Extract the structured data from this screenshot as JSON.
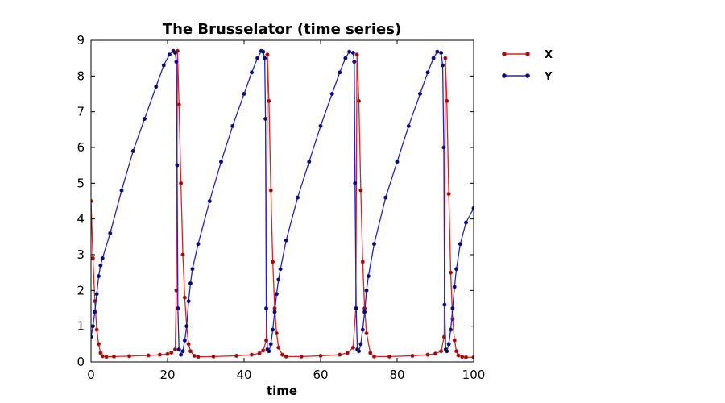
{
  "chart_data": {
    "type": "line",
    "title": "The Brusselator (time series)",
    "xlabel": "time",
    "ylabel": "",
    "xlim": [
      0,
      100
    ],
    "ylim": [
      0,
      9
    ],
    "xticks": [
      "0",
      "20",
      "40",
      "60",
      "80",
      "100"
    ],
    "yticks": [
      "0",
      "1",
      "2",
      "3",
      "4",
      "5",
      "6",
      "7",
      "8",
      "9"
    ],
    "grid": false,
    "legend_position": "outside-top-right",
    "colors": {
      "X": "#dd2222",
      "Y": "#2222cc",
      "X_marker": "#8b1111",
      "Y_marker": "#0a0a55"
    },
    "series": [
      {
        "name": "X",
        "x": [
          0,
          0.5,
          1,
          1.5,
          2,
          2.5,
          3,
          4,
          6,
          10,
          15,
          18,
          20,
          21,
          22,
          22.3,
          22.6,
          23,
          23.5,
          24,
          24.5,
          25,
          25.5,
          26,
          27,
          28,
          32,
          38,
          42,
          44,
          45,
          45.8,
          46.1,
          46.5,
          47,
          47.5,
          48,
          48.5,
          49,
          50,
          51,
          55,
          60,
          65,
          67,
          68.5,
          69.2,
          69.5,
          70,
          70.5,
          71,
          71.5,
          72,
          73,
          74,
          78,
          84,
          88,
          90,
          91.5,
          92.3,
          92.6,
          93,
          93.5,
          94,
          94.5,
          95,
          95.5,
          96,
          97,
          98,
          100
        ],
        "y": [
          4.5,
          2.9,
          1.7,
          0.9,
          0.5,
          0.25,
          0.16,
          0.14,
          0.15,
          0.16,
          0.18,
          0.2,
          0.22,
          0.26,
          0.35,
          2.0,
          8.7,
          7.2,
          5.0,
          3.0,
          1.8,
          1.0,
          0.5,
          0.3,
          0.17,
          0.14,
          0.15,
          0.17,
          0.2,
          0.24,
          0.32,
          0.6,
          8.6,
          7.3,
          4.8,
          2.8,
          1.5,
          0.8,
          0.4,
          0.2,
          0.15,
          0.15,
          0.17,
          0.2,
          0.25,
          0.4,
          1.5,
          8.6,
          7.3,
          4.8,
          2.8,
          1.5,
          0.8,
          0.25,
          0.15,
          0.15,
          0.17,
          0.2,
          0.23,
          0.3,
          0.7,
          8.5,
          7.3,
          4.7,
          2.5,
          1.2,
          0.6,
          0.3,
          0.18,
          0.14,
          0.13,
          0.13
        ]
      },
      {
        "name": "Y",
        "x": [
          0,
          0.5,
          1,
          1.5,
          2,
          2.5,
          3,
          5,
          8,
          11,
          14,
          17,
          19,
          20.5,
          21.5,
          22,
          22.3,
          22.5,
          22.7,
          23,
          23.5,
          24,
          24.5,
          25,
          25.5,
          26,
          26.5,
          28,
          31,
          34,
          37,
          40,
          42,
          43.5,
          44.5,
          45,
          45.4,
          45.6,
          45.8,
          46.1,
          46.5,
          47,
          47.5,
          48,
          48.5,
          49,
          49.5,
          51,
          54,
          57,
          60,
          63,
          65,
          66.5,
          67.5,
          68.5,
          68.8,
          69,
          69.3,
          69.6,
          70,
          70.5,
          71,
          71.5,
          72,
          72.5,
          74,
          77,
          80,
          83,
          86,
          88,
          89.5,
          90.5,
          91.5,
          91.9,
          92.2,
          92.4,
          92.7,
          93,
          93.5,
          94,
          94.5,
          95,
          95.5,
          96.5,
          98,
          100
        ],
        "y": [
          0.7,
          1.0,
          1.4,
          1.9,
          2.4,
          2.7,
          2.9,
          3.6,
          4.8,
          5.9,
          6.8,
          7.7,
          8.3,
          8.6,
          8.7,
          8.65,
          8.4,
          5.5,
          1.5,
          0.35,
          0.2,
          0.3,
          0.6,
          1.0,
          1.7,
          2.2,
          2.6,
          3.3,
          4.5,
          5.6,
          6.6,
          7.5,
          8.1,
          8.5,
          8.7,
          8.68,
          8.5,
          6.8,
          1.5,
          0.35,
          0.3,
          0.5,
          0.9,
          1.4,
          1.9,
          2.3,
          2.6,
          3.4,
          4.6,
          5.6,
          6.6,
          7.5,
          8.1,
          8.5,
          8.68,
          8.65,
          8.4,
          5.0,
          1.5,
          0.35,
          0.3,
          0.5,
          0.9,
          1.4,
          2.0,
          2.4,
          3.3,
          4.6,
          5.6,
          6.6,
          7.5,
          8.1,
          8.5,
          8.68,
          8.65,
          8.3,
          6.0,
          1.6,
          0.35,
          0.3,
          0.5,
          0.9,
          1.5,
          2.1,
          2.6,
          3.3,
          3.9,
          4.3
        ]
      }
    ]
  }
}
